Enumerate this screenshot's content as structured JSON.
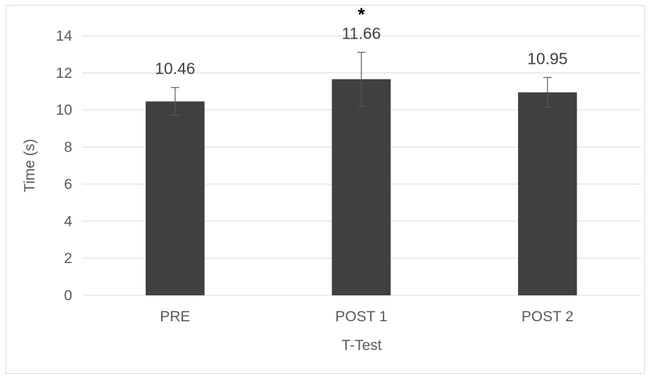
{
  "chart_data": {
    "type": "bar",
    "categories": [
      "PRE",
      "POST 1",
      "POST 2"
    ],
    "values": [
      10.46,
      11.66,
      10.95
    ],
    "error": [
      0.75,
      1.45,
      0.8
    ],
    "data_labels": [
      "10.46",
      "11.66",
      "10.95"
    ],
    "significance": [
      "",
      "*",
      ""
    ],
    "xlabel": "T-Test",
    "ylabel": "Time (s)",
    "ylim": [
      0,
      14
    ],
    "yticks": [
      0,
      2,
      4,
      6,
      8,
      10,
      12,
      14
    ],
    "grid": true,
    "legend": "none",
    "colors": {
      "bar": "#404040",
      "grid": "#d9d9d9",
      "error_bar": "#595959",
      "text": "#595959"
    }
  }
}
